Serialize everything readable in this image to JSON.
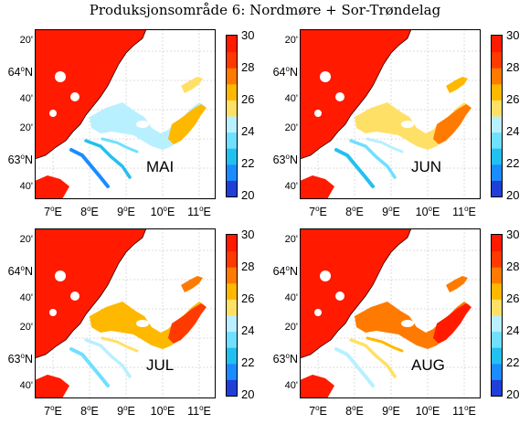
{
  "title": "Produksjonsområde 6: Nordmøre + Sor-Trøndelag",
  "colorbar": {
    "ticks": [
      "30",
      "28",
      "26",
      "24",
      "22",
      "20"
    ],
    "min": 20,
    "max": 30
  },
  "lat_ticks": [
    {
      "label": "20'",
      "deg": false
    },
    {
      "label": "64°N",
      "deg": true
    },
    {
      "label": "40'",
      "deg": false
    },
    {
      "label": "20'",
      "deg": false
    },
    {
      "label": "63°N",
      "deg": true
    },
    {
      "label": "40'",
      "deg": false
    }
  ],
  "lon_ticks": [
    "7°E",
    "8°E",
    "9°E",
    "10°E",
    "11°E"
  ],
  "panels": [
    {
      "month": "MAI",
      "inner_fjord_value": 26.5
    },
    {
      "month": "JUN",
      "inner_fjord_value": 27.5
    },
    {
      "month": "JUL",
      "inner_fjord_value": 28.5
    },
    {
      "month": "AUG",
      "inner_fjord_value": 29
    }
  ],
  "colors": {
    "ocean": "#ff1a00",
    "land": "#ffffff",
    "grid": "#b8b8b8"
  },
  "colormap": [
    "#1f3fd8",
    "#1a8cff",
    "#22c0f0",
    "#6fe0ff",
    "#b8f0ff",
    "#ffe066",
    "#ffb800",
    "#ff7a00",
    "#ff3a00",
    "#ff1a00"
  ]
}
